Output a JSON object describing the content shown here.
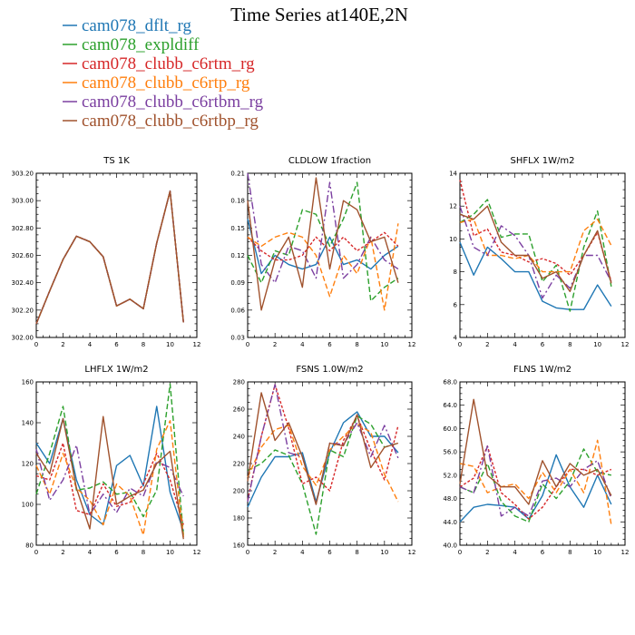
{
  "figure": {
    "title": "Time Series at140E,2N"
  },
  "legend": [
    {
      "label": "cam078_dflt_rg",
      "color": "#1f77b4",
      "dash": ""
    },
    {
      "label": "cam078_expldiff",
      "color": "#2ca02c",
      "dash": "6 3"
    },
    {
      "label": "cam078_clubb_c6rtm_rg",
      "color": "#d62728",
      "dash": "3 2"
    },
    {
      "label": "cam078_clubb_c6rtp_rg",
      "color": "#ff7f0e",
      "dash": "6 3"
    },
    {
      "label": "cam078_clubb_c6rtbm_rg",
      "color": "#7b3fa0",
      "dash": "8 3 2 3"
    },
    {
      "label": "cam078_clubb_c6rtbp_rg",
      "color": "#a0522d",
      "dash": ""
    }
  ],
  "chart_data": [
    {
      "type": "line",
      "title": "TS  1K",
      "x": [
        0,
        1,
        2,
        3,
        4,
        5,
        6,
        7,
        8,
        9,
        10,
        11
      ],
      "xlim": [
        0,
        12
      ],
      "xticks": [
        0,
        2,
        4,
        6,
        8,
        10,
        12
      ],
      "ylim": [
        302.0,
        303.2
      ],
      "yticks": [
        302.0,
        302.2,
        302.4,
        302.6,
        302.8,
        303.0,
        303.2
      ],
      "ytick_labels": [
        "302.00",
        "302.20",
        "302.40",
        "302.60",
        "302.80",
        "303.00",
        "303.20"
      ],
      "series": [
        {
          "name": "cam078_dflt_rg",
          "values": [
            302.1,
            302.34,
            302.57,
            302.74,
            302.7,
            302.59,
            302.23,
            302.28,
            302.21,
            302.69,
            303.07,
            302.11
          ]
        },
        {
          "name": "cam078_expldiff",
          "values": [
            302.1,
            302.34,
            302.57,
            302.74,
            302.7,
            302.59,
            302.23,
            302.28,
            302.21,
            302.69,
            303.07,
            302.11
          ]
        },
        {
          "name": "cam078_clubb_c6rtm_rg",
          "values": [
            302.1,
            302.34,
            302.57,
            302.74,
            302.7,
            302.59,
            302.23,
            302.28,
            302.21,
            302.69,
            303.07,
            302.11
          ]
        },
        {
          "name": "cam078_clubb_c6rtp_rg",
          "values": [
            302.1,
            302.34,
            302.57,
            302.74,
            302.7,
            302.59,
            302.23,
            302.28,
            302.21,
            302.69,
            303.07,
            302.11
          ]
        },
        {
          "name": "cam078_clubb_c6rtbm_rg",
          "values": [
            302.1,
            302.34,
            302.57,
            302.74,
            302.7,
            302.59,
            302.23,
            302.28,
            302.21,
            302.69,
            303.07,
            302.11
          ]
        },
        {
          "name": "cam078_clubb_c6rtbp_rg",
          "values": [
            302.1,
            302.34,
            302.57,
            302.74,
            302.7,
            302.59,
            302.23,
            302.28,
            302.21,
            302.69,
            303.07,
            302.11
          ]
        }
      ]
    },
    {
      "type": "line",
      "title": "CLDLOW  1fraction",
      "x": [
        0,
        1,
        2,
        3,
        4,
        5,
        6,
        7,
        8,
        9,
        10,
        11
      ],
      "xlim": [
        0,
        12
      ],
      "xticks": [
        0,
        2,
        4,
        6,
        8,
        10,
        12
      ],
      "ylim": [
        0.03,
        0.21
      ],
      "yticks": [
        0.03,
        0.06,
        0.09,
        0.12,
        0.15,
        0.18,
        0.21
      ],
      "ytick_labels": [
        "0.03",
        "0.06",
        "0.09",
        "0.12",
        "0.15",
        "0.18",
        "0.21"
      ],
      "series": [
        {
          "name": "cam078_dflt_rg",
          "values": [
            0.16,
            0.1,
            0.12,
            0.11,
            0.105,
            0.11,
            0.14,
            0.11,
            0.115,
            0.105,
            0.12,
            0.13
          ]
        },
        {
          "name": "cam078_expldiff",
          "values": [
            0.12,
            0.09,
            0.125,
            0.12,
            0.17,
            0.165,
            0.13,
            0.16,
            0.2,
            0.07,
            0.085,
            0.095
          ]
        },
        {
          "name": "cam078_clubb_c6rtm_rg",
          "values": [
            0.14,
            0.125,
            0.115,
            0.115,
            0.12,
            0.14,
            0.125,
            0.14,
            0.125,
            0.135,
            0.145,
            0.13
          ]
        },
        {
          "name": "cam078_clubb_c6rtp_rg",
          "values": [
            0.14,
            0.13,
            0.14,
            0.145,
            0.14,
            0.12,
            0.075,
            0.12,
            0.1,
            0.14,
            0.06,
            0.155
          ]
        },
        {
          "name": "cam078_clubb_c6rtbm_rg",
          "values": [
            0.21,
            0.11,
            0.09,
            0.13,
            0.125,
            0.095,
            0.2,
            0.095,
            0.11,
            0.14,
            0.115,
            0.105
          ]
        },
        {
          "name": "cam078_clubb_c6rtbp_rg",
          "values": [
            0.18,
            0.06,
            0.115,
            0.14,
            0.085,
            0.205,
            0.105,
            0.18,
            0.17,
            0.135,
            0.14,
            0.09
          ]
        }
      ]
    },
    {
      "type": "line",
      "title": "SHFLX  1W/m2",
      "x": [
        0,
        1,
        2,
        3,
        4,
        5,
        6,
        7,
        8,
        9,
        10,
        11
      ],
      "xlim": [
        0,
        12
      ],
      "xticks": [
        0,
        2,
        4,
        6,
        8,
        10,
        12
      ],
      "ylim": [
        4,
        14
      ],
      "yticks": [
        4,
        6,
        8,
        10,
        12,
        14
      ],
      "ytick_labels": [
        "4",
        "6",
        "8",
        "10",
        "12",
        "14"
      ],
      "series": [
        {
          "name": "cam078_dflt_rg",
          "values": [
            9.8,
            7.8,
            9.5,
            8.8,
            8.0,
            8.0,
            6.2,
            5.8,
            5.7,
            5.7,
            7.2,
            5.9
          ]
        },
        {
          "name": "cam078_expldiff",
          "values": [
            11.0,
            11.5,
            12.4,
            10.1,
            10.3,
            10.3,
            7.4,
            8.4,
            5.6,
            9.5,
            11.7,
            7.1
          ]
        },
        {
          "name": "cam078_clubb_c6rtm_rg",
          "values": [
            13.6,
            10.2,
            10.6,
            9.2,
            9.0,
            8.6,
            8.8,
            8.5,
            7.8,
            9.0,
            10.4,
            7.4
          ]
        },
        {
          "name": "cam078_clubb_c6rtp_rg",
          "values": [
            11.0,
            11.2,
            9.0,
            9.0,
            8.8,
            9.0,
            8.0,
            8.0,
            8.0,
            10.5,
            11.2,
            9.6
          ]
        },
        {
          "name": "cam078_clubb_c6rtbm_rg",
          "values": [
            12.0,
            9.5,
            9.0,
            10.8,
            10.2,
            9.0,
            6.4,
            7.8,
            7.0,
            9.0,
            9.0,
            7.4
          ]
        },
        {
          "name": "cam078_clubb_c6rtbp_rg",
          "values": [
            11.5,
            11.2,
            12.0,
            9.8,
            9.0,
            9.0,
            7.6,
            8.0,
            6.8,
            9.0,
            10.5,
            7.3
          ]
        }
      ]
    },
    {
      "type": "line",
      "title": "LHFLX  1W/m2",
      "x": [
        0,
        1,
        2,
        3,
        4,
        5,
        6,
        7,
        8,
        9,
        10,
        11
      ],
      "xlim": [
        0,
        12
      ],
      "xticks": [
        0,
        2,
        4,
        6,
        8,
        10,
        12
      ],
      "ylim": [
        80,
        160
      ],
      "yticks": [
        80,
        100,
        120,
        140,
        160
      ],
      "ytick_labels": [
        "80",
        "100",
        "120",
        "140",
        "160"
      ],
      "series": [
        {
          "name": "cam078_dflt_rg",
          "values": [
            130,
            120,
            142,
            112,
            95,
            90,
            119,
            124,
            109,
            148,
            106,
            87
          ]
        },
        {
          "name": "cam078_expldiff",
          "values": [
            105,
            125,
            148,
            107,
            108,
            111,
            105,
            106,
            94,
            107,
            159,
            85
          ]
        },
        {
          "name": "cam078_clubb_c6rtm_rg",
          "values": [
            114,
            112,
            130,
            97,
            95,
            110,
            99,
            101,
            110,
            125,
            112,
            90
          ]
        },
        {
          "name": "cam078_clubb_c6rtp_rg",
          "values": [
            119,
            105,
            125,
            108,
            102,
            90,
            110,
            104,
            85,
            127,
            141,
            84
          ]
        },
        {
          "name": "cam078_clubb_c6rtbm_rg",
          "values": [
            127,
            102,
            112,
            129,
            95,
            105,
            96,
            108,
            104,
            121,
            118,
            104
          ]
        },
        {
          "name": "cam078_clubb_c6rtbp_rg",
          "values": [
            125,
            115,
            142,
            108,
            88,
            143,
            100,
            104,
            107,
            120,
            126,
            83
          ]
        }
      ]
    },
    {
      "type": "line",
      "title": "FSNS  1.0W/m2",
      "x": [
        0,
        1,
        2,
        3,
        4,
        5,
        6,
        7,
        8,
        9,
        10,
        11
      ],
      "xlim": [
        0,
        12
      ],
      "xticks": [
        0,
        2,
        4,
        6,
        8,
        10,
        12
      ],
      "ylim": [
        160,
        280
      ],
      "yticks": [
        160,
        180,
        200,
        220,
        240,
        260,
        280
      ],
      "ytick_labels": [
        "160",
        "180",
        "200",
        "220",
        "240",
        "260",
        "280"
      ],
      "series": [
        {
          "name": "cam078_dflt_rg",
          "values": [
            188,
            210,
            225,
            225,
            228,
            192,
            228,
            250,
            258,
            240,
            240,
            228
          ]
        },
        {
          "name": "cam078_expldiff",
          "values": [
            215,
            220,
            230,
            226,
            205,
            168,
            230,
            225,
            255,
            249,
            232,
            235
          ]
        },
        {
          "name": "cam078_clubb_c6rtm_rg",
          "values": [
            193,
            240,
            278,
            246,
            205,
            210,
            200,
            237,
            255,
            230,
            208,
            248
          ]
        },
        {
          "name": "cam078_clubb_c6rtp_rg",
          "values": [
            210,
            232,
            245,
            248,
            218,
            204,
            230,
            240,
            249,
            243,
            212,
            192
          ]
        },
        {
          "name": "cam078_clubb_c6rtbm_rg",
          "values": [
            192,
            240,
            278,
            228,
            225,
            190,
            235,
            234,
            250,
            225,
            248,
            224
          ]
        },
        {
          "name": "cam078_clubb_c6rtbp_rg",
          "values": [
            207,
            272,
            237,
            250,
            225,
            190,
            235,
            233,
            256,
            217,
            232,
            235
          ]
        }
      ]
    },
    {
      "type": "line",
      "title": "FLNS  1W/m2",
      "x": [
        0,
        1,
        2,
        3,
        4,
        5,
        6,
        7,
        8,
        9,
        10,
        11
      ],
      "xlim": [
        0,
        12
      ],
      "xticks": [
        0,
        2,
        4,
        6,
        8,
        10,
        12
      ],
      "ylim": [
        40,
        68
      ],
      "yticks": [
        40,
        44,
        48,
        52,
        56,
        60,
        64,
        68
      ],
      "ytick_labels": [
        "40.0",
        "44.0",
        "48.0",
        "52.0",
        "56.0",
        "60.0",
        "64.0",
        "68.0"
      ],
      "series": [
        {
          "name": "cam078_dflt_rg",
          "values": [
            44.0,
            46.5,
            47.0,
            46.8,
            46.5,
            44.5,
            48.5,
            55.5,
            50.0,
            46.5,
            52.0,
            47.0
          ]
        },
        {
          "name": "cam078_expldiff",
          "values": [
            50.0,
            49.0,
            54.0,
            47.5,
            45.0,
            44.0,
            50.5,
            48.0,
            51.0,
            56.5,
            52.5,
            52.0
          ]
        },
        {
          "name": "cam078_clubb_c6rtm_rg",
          "values": [
            50.0,
            51.5,
            57.0,
            49.0,
            47.0,
            44.5,
            46.5,
            50.0,
            53.0,
            53.0,
            52.0,
            53.0
          ]
        },
        {
          "name": "cam078_clubb_c6rtp_rg",
          "values": [
            54.0,
            53.5,
            49.0,
            50.0,
            50.5,
            48.0,
            52.5,
            49.0,
            53.0,
            49.0,
            58.0,
            43.5
          ]
        },
        {
          "name": "cam078_clubb_c6rtbm_rg",
          "values": [
            50.0,
            49.0,
            57.0,
            45.0,
            46.5,
            45.0,
            51.0,
            51.5,
            50.0,
            53.0,
            54.5,
            48.0
          ]
        },
        {
          "name": "cam078_clubb_c6rtbp_rg",
          "values": [
            50.5,
            65.0,
            52.0,
            50.0,
            50.0,
            47.0,
            54.5,
            50.0,
            54.0,
            52.0,
            53.0,
            48.5
          ]
        }
      ]
    }
  ]
}
